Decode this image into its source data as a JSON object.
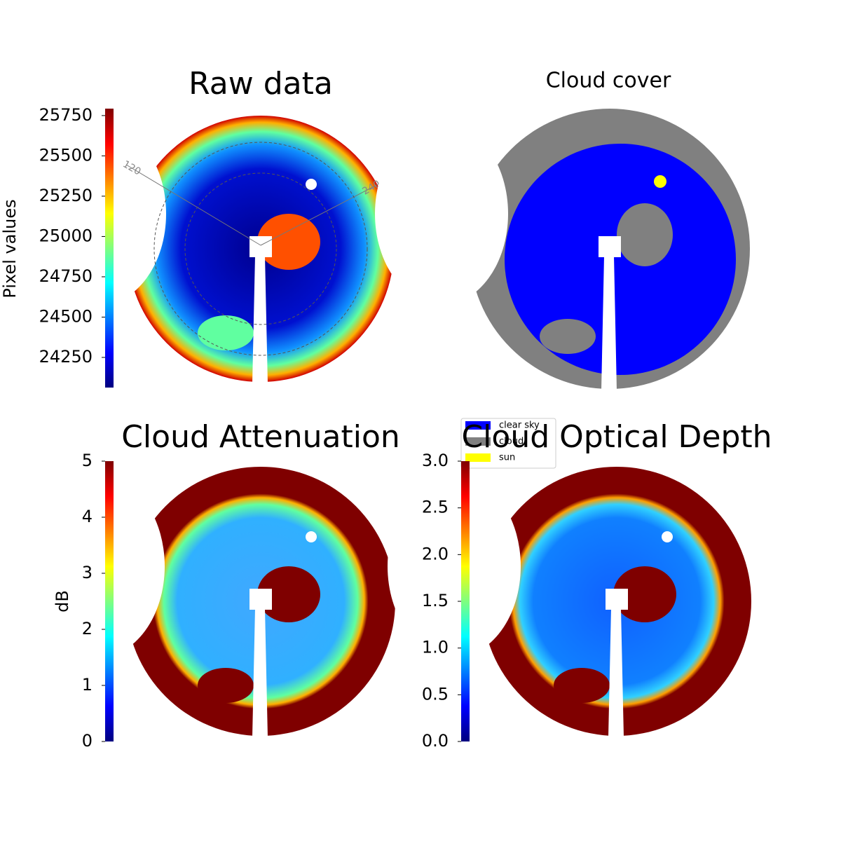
{
  "chart_data": [
    {
      "type": "heatmap",
      "title": "Raw data",
      "colorbar_label": "Pixel values",
      "ylim": [
        24063,
        25793
      ],
      "yticks": [
        24250,
        24500,
        24750,
        25000,
        25250,
        25500,
        25750
      ],
      "annotations": [
        "120",
        "240"
      ]
    },
    {
      "type": "categorical",
      "title": "Cloud cover",
      "series": [
        {
          "name": "clear sky",
          "color": "#0000ff"
        },
        {
          "name": "cloud",
          "color": "#808080"
        },
        {
          "name": "sun",
          "color": "#ffff00"
        }
      ]
    },
    {
      "type": "heatmap",
      "title": "Cloud Attenuation",
      "colorbar_label": "dB",
      "ylim": [
        0,
        5
      ],
      "yticks": [
        0,
        1,
        2,
        3,
        4,
        5
      ]
    },
    {
      "type": "heatmap",
      "title": "Cloud Optical Depth",
      "ylim": [
        0,
        3
      ],
      "yticks": [
        {
          "value": 0,
          "label": "0.0"
        },
        0.5,
        {
          "value": 1,
          "label": "1.0"
        },
        1.5,
        {
          "value": 2,
          "label": "2.0"
        },
        2.5,
        {
          "value": 3,
          "label": "3.0"
        }
      ]
    }
  ]
}
